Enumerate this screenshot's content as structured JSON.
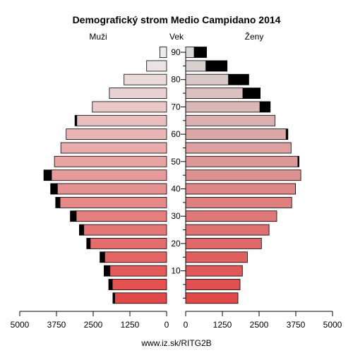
{
  "chart_data": {
    "type": "bar",
    "title": "Demografický strom Medio Campidano 2014",
    "label_left": "Muži",
    "label_center": "Vek",
    "label_right": "Ženy",
    "footer": "www.iz.sk/RITG2B",
    "x_ticks_left": [
      "5000",
      "3750",
      "2500",
      "1250",
      "0"
    ],
    "x_ticks_right": [
      "0",
      "1250",
      "2500",
      "3750",
      "5000"
    ],
    "x_range": [
      0,
      5000
    ],
    "age_ticks": [
      "10",
      "20",
      "30",
      "40",
      "50",
      "60",
      "70",
      "80",
      "90"
    ],
    "age_groups": [
      "0-4",
      "5-9",
      "10-14",
      "15-19",
      "20-24",
      "25-29",
      "30-34",
      "35-39",
      "40-44",
      "45-49",
      "50-54",
      "55-59",
      "60-64",
      "65-69",
      "70-74",
      "75-79",
      "80-84",
      "85-89",
      "90+"
    ],
    "series": [
      {
        "name": "Muži",
        "values": [
          1770,
          1850,
          1930,
          2110,
          2600,
          2820,
          3080,
          3630,
          3720,
          3920,
          3820,
          3600,
          3420,
          3060,
          2530,
          1950,
          1450,
          680,
          230
        ],
        "excess": [
          60,
          120,
          200,
          160,
          120,
          150,
          200,
          150,
          230,
          260,
          0,
          0,
          0,
          60,
          0,
          0,
          0,
          0,
          0
        ]
      },
      {
        "name": "Ženy",
        "values": [
          1780,
          1850,
          1930,
          2100,
          2580,
          2840,
          3100,
          3610,
          3740,
          3920,
          3820,
          3590,
          3420,
          3040,
          2530,
          1950,
          1460,
          690,
          290
        ],
        "excess": [
          0,
          0,
          0,
          0,
          0,
          0,
          0,
          0,
          0,
          0,
          40,
          0,
          60,
          0,
          350,
          590,
          690,
          720,
          420
        ]
      }
    ]
  }
}
